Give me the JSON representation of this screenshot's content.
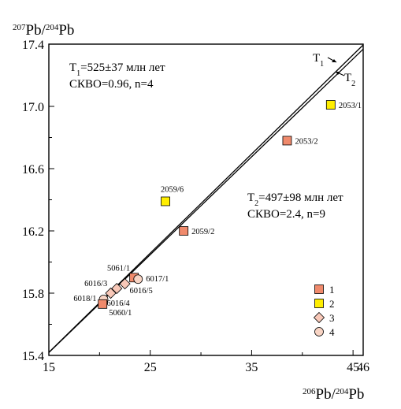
{
  "chart_data": {
    "type": "scatter",
    "title": "",
    "xlabel": {
      "pre": "206",
      "a": "Pb/",
      "sup": "204",
      "b": "Pb"
    },
    "ylabel": {
      "pre": "207",
      "a": "Pb/",
      "sup": "204",
      "b": "Pb"
    },
    "xlim": [
      15,
      46
    ],
    "ylim": [
      15.4,
      17.4
    ],
    "x_ticks": [
      15,
      25,
      35,
      45,
      46
    ],
    "y_ticks": [
      15.4,
      15.8,
      16.2,
      16.6,
      17.0,
      17.4
    ],
    "x_tick_labels": [
      "15",
      "25",
      "35",
      "45",
      "46"
    ],
    "y_tick_labels": [
      "15.4",
      "15.8",
      "16.2",
      "16.6",
      "17.0",
      "17.4"
    ],
    "grid": false,
    "isochrons": [
      {
        "name": "T1",
        "sub": "1",
        "x": [
          15,
          46
        ],
        "y": [
          15.42,
          17.395
        ]
      },
      {
        "name": "T2",
        "sub": "2",
        "x": [
          15,
          46
        ],
        "y": [
          15.418,
          17.368
        ]
      }
    ],
    "annotations": {
      "t1": {
        "line1_pre": "T",
        "line1_sub": "1",
        "line1_post": "=525±37 млн лет",
        "line2": "СКВО=0.96, n=4"
      },
      "t2": {
        "line1_pre": "T",
        "line1_sub": "2",
        "line1_post": "=497±98 млн лет",
        "line2": "СКВО=2.4, n=9"
      }
    },
    "legend": {
      "placement": "bottom-right",
      "items": [
        {
          "label": "1",
          "marker": "square",
          "color": "#f08a6c"
        },
        {
          "label": "2",
          "marker": "square",
          "color": "#ffee00"
        },
        {
          "label": "3",
          "marker": "diamond",
          "color": "#f8c8b8"
        },
        {
          "label": "4",
          "marker": "circle",
          "color": "#f8d4c4"
        }
      ]
    },
    "points": [
      {
        "label": "2053/1",
        "x": 42.8,
        "y": 17.01,
        "group": "2"
      },
      {
        "label": "2053/2",
        "x": 38.5,
        "y": 16.78,
        "group": "1"
      },
      {
        "label": "2059/6",
        "x": 26.5,
        "y": 16.39,
        "group": "2"
      },
      {
        "label": "2059/2",
        "x": 28.3,
        "y": 16.2,
        "group": "1"
      },
      {
        "label": "5061/1",
        "x": 23.4,
        "y": 15.9,
        "group": "1"
      },
      {
        "label": "6017/1",
        "x": 23.8,
        "y": 15.89,
        "group": "4"
      },
      {
        "label": "6016/3",
        "x": 21.7,
        "y": 15.83,
        "group": "3"
      },
      {
        "label": "6016/5",
        "x": 22.5,
        "y": 15.86,
        "group": "3"
      },
      {
        "label": "6016/4",
        "x": 21.1,
        "y": 15.8,
        "group": "3"
      },
      {
        "label": "6018/1",
        "x": 20.4,
        "y": 15.76,
        "group": "4"
      },
      {
        "label": "5060/1",
        "x": 20.3,
        "y": 15.73,
        "group": "1"
      }
    ]
  }
}
